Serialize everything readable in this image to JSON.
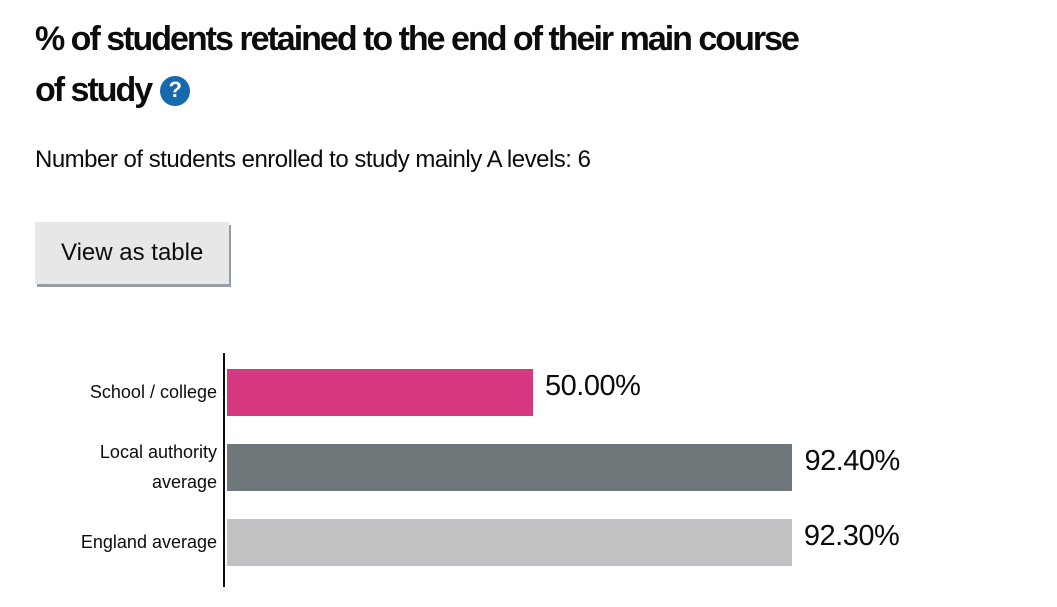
{
  "header": {
    "title_line1": "% of students retained to the end of their main course",
    "title_line2": "of study",
    "help_icon": {
      "glyph": "?",
      "color": "#1769ad"
    },
    "subtitle": "Number of students enrolled to study mainly A levels: 6"
  },
  "toolbar": {
    "view_as_table_label": "View as table"
  },
  "chart_data": {
    "type": "bar",
    "orientation": "horizontal",
    "title": "% of students retained to the end of their main course of study",
    "categories": [
      "School / college",
      "Local authority average",
      "England average"
    ],
    "values": [
      50.0,
      92.4,
      92.3
    ],
    "value_labels": [
      "50.00%",
      "92.40%",
      "92.30%"
    ],
    "bar_colors": [
      "#d53880",
      "#6f777b",
      "#bfc1c3"
    ],
    "xlim": [
      0,
      100
    ],
    "grid": false,
    "legend": "none"
  },
  "colors": {
    "text": "#0b0c0c",
    "school_college_bar": "#d53880",
    "local_authority_bar": "#6f777b",
    "england_average_bar": "#bfc1c3",
    "button_background": "#e6e7e8",
    "button_shadow": "#979da2",
    "help_icon_blue": "#1769ad"
  }
}
